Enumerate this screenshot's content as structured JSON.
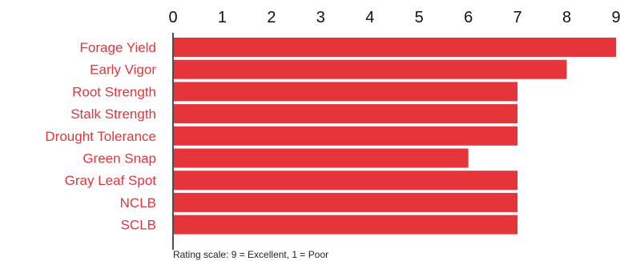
{
  "chart_data": {
    "type": "bar",
    "orientation": "horizontal",
    "categories": [
      "Forage Yield",
      "Early Vigor",
      "Root Strength",
      "Stalk Strength",
      "Drought Tolerance",
      "Green Snap",
      "Gray Leaf Spot",
      "NCLB",
      "SCLB"
    ],
    "values": [
      9,
      8,
      7,
      7,
      7,
      6,
      7,
      7,
      7
    ],
    "x_ticks": [
      "0",
      "1",
      "2",
      "3",
      "4",
      "5",
      "6",
      "7",
      "8",
      "9"
    ],
    "xlim": [
      0,
      9
    ],
    "axis_position": "top",
    "grid": false,
    "legend": "none",
    "footnote": "Rating scale: 9 = Excellent, 1 = Poor",
    "bar_color": "#e5343a",
    "label_color": "#e5343a",
    "tick_color": "#111111",
    "axis_color": "#111111"
  }
}
